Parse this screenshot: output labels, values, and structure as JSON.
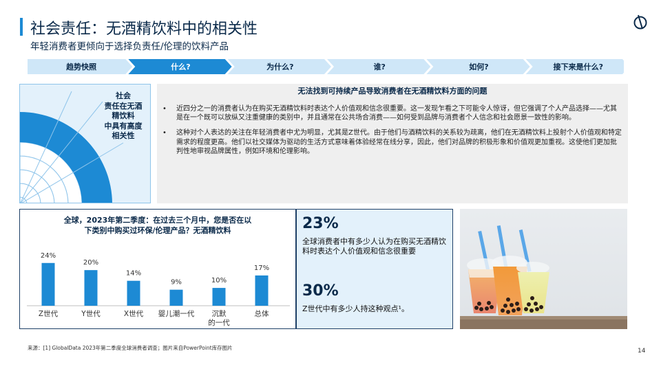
{
  "header": {
    "title": "社会责任：无酒精饮料中的相关性",
    "subtitle": "年轻消费者更倾向于选择负责任/伦理的饮料产品"
  },
  "steps": {
    "active_index": 1,
    "items": [
      {
        "label": "趋势快照"
      },
      {
        "label": "什么?"
      },
      {
        "label": "为什么?"
      },
      {
        "label": "谁?"
      },
      {
        "label": "如何?"
      },
      {
        "label": "接下来是什么?"
      }
    ]
  },
  "relevance": {
    "label": "社会\n责任在无酒\n精饮料\n中具有高度\n相关性",
    "level": "high"
  },
  "issue": {
    "heading": "无法找到可持续产品导致消费者在无酒精饮料方面的问题",
    "bullets": [
      "近四分之一的消费者认为在购买无酒精饮料时表达个人价值观和信念很重要。这一发现乍看之下可能令人惊讶，但它强调了个人产品选择——尤其是在一个既可以放纵又注重健康的类别中，并且通常在公共场合消费——如何受到品牌与消费者个人信念和社会愿景一致性的影响。",
      "这种对个人表达的关注在年轻消费者中尤为明显，尤其是Z世代。由于他们与酒精饮料的关系较为疏离，他们在无酒精饮料上投射个人价值观和特定需求的程度更高。他们以社交媒体为驱动的生活方式意味着体验经常在线分享，因此，他们对品牌的积极形象和价值观更加重视。这使他们更加批判性地审视品牌属性，例如环境和伦理影响。"
    ]
  },
  "chart_data": {
    "type": "bar",
    "title": "全球，2023年第二季度：在过去三个月中，您是否在以下类别中购买过环保/伦理产品？无酒精饮料",
    "categories": [
      "Z世代",
      "Y世代",
      "X世代",
      "婴儿潮一代",
      "沉默的一代",
      "总体"
    ],
    "category_labels": [
      [
        "Z世代"
      ],
      [
        "Y世代"
      ],
      [
        "X世代"
      ],
      [
        "婴儿潮一代"
      ],
      [
        "沉默",
        "的一代"
      ],
      [
        "总体"
      ]
    ],
    "values": [
      24,
      20,
      14,
      9,
      10,
      17
    ],
    "value_labels": [
      "24%",
      "20%",
      "14%",
      "9%",
      "10%",
      "17%"
    ],
    "ylim": [
      0,
      27
    ],
    "bar_color": "#1d8ad4"
  },
  "stats": [
    {
      "value": "23%",
      "text": "全球消费者中有多少人认为在购买无酒精饮料时表达个人价值观和信念很重要"
    },
    {
      "value": "30%",
      "text": "Z世代中有多少人持这种观点¹。"
    }
  ],
  "footer": {
    "source": "来源：[1] GlobalData 2023年第二季度全球消费者调查；图片来自PowerPoint库存图片",
    "page": "14"
  },
  "colors": {
    "accent": "#1d8ad4",
    "navy": "#0b2a4a",
    "step_inactive": "#cfe7f8",
    "step_active": "#1d8ad4",
    "panel_light": "#e3f1fb",
    "panel_grey": "#efefef"
  }
}
